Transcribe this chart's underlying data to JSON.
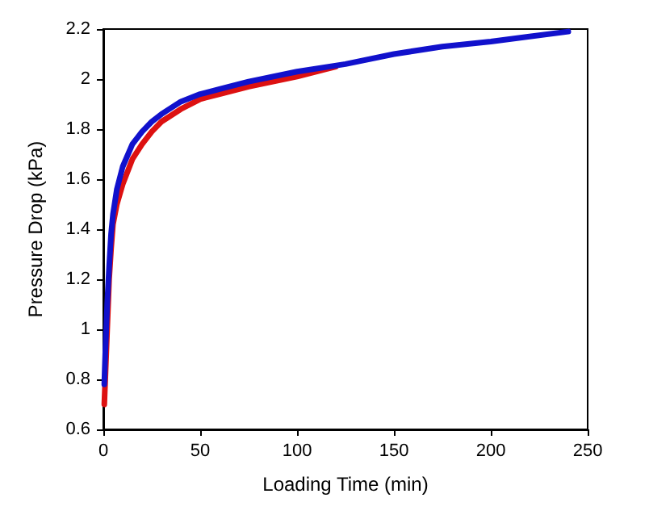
{
  "chart_data": {
    "type": "line",
    "xlabel": "Loading Time (min)",
    "ylabel": "Pressure Drop (kPa)",
    "xlim": [
      0,
      250
    ],
    "xticks": [
      0,
      50,
      100,
      150,
      200,
      250
    ],
    "ylim": [
      0.6,
      2.2
    ],
    "yticks": [
      0.6,
      0.8,
      1,
      1.2,
      1.4,
      1.6,
      1.8,
      2,
      2.2
    ],
    "grid": false,
    "marker": "none",
    "line_style": "solid",
    "series": [
      {
        "color": "#dd1111",
        "x": [
          0.5,
          1,
          2,
          3,
          4,
          5,
          7,
          10,
          15,
          20,
          25,
          30,
          40,
          50,
          60,
          75,
          100,
          115,
          120
        ],
        "values": [
          0.7,
          0.8,
          1.0,
          1.2,
          1.32,
          1.42,
          1.5,
          1.58,
          1.68,
          1.74,
          1.79,
          1.83,
          1.88,
          1.92,
          1.94,
          1.97,
          2.01,
          2.04,
          2.05
        ]
      },
      {
        "color": "#1111cc",
        "x": [
          0.5,
          1,
          2,
          3,
          4,
          5,
          7,
          10,
          15,
          20,
          25,
          30,
          40,
          50,
          60,
          75,
          100,
          125,
          150,
          175,
          200,
          220,
          240
        ],
        "values": [
          0.78,
          0.9,
          1.1,
          1.25,
          1.38,
          1.46,
          1.56,
          1.65,
          1.74,
          1.79,
          1.83,
          1.86,
          1.91,
          1.94,
          1.96,
          1.99,
          2.03,
          2.06,
          2.1,
          2.13,
          2.15,
          2.17,
          2.19
        ]
      }
    ]
  }
}
